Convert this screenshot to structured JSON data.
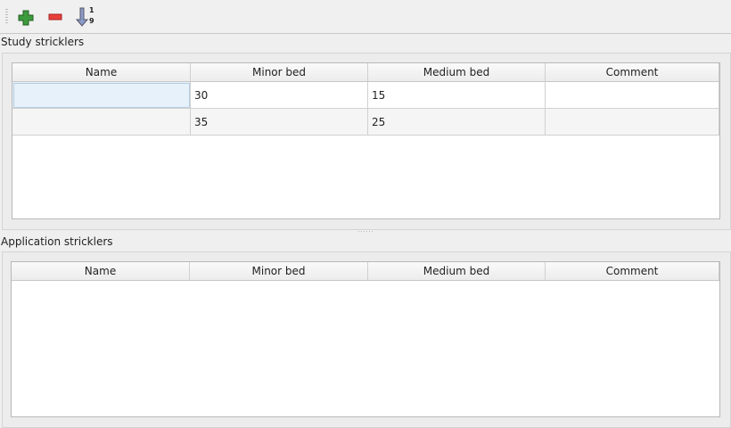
{
  "toolbar": {
    "add_icon": "plus-icon",
    "remove_icon": "minus-icon",
    "sort_icon": "sort-ascending-icon",
    "sort_digits": [
      "1",
      "9"
    ]
  },
  "study": {
    "title": "Study stricklers",
    "columns": [
      "Name",
      "Minor bed",
      "Medium bed",
      "Comment"
    ],
    "rows": [
      [
        "",
        "30",
        "15",
        ""
      ],
      [
        "",
        "35",
        "25",
        ""
      ]
    ]
  },
  "application": {
    "title": "Application stricklers",
    "columns": [
      "Name",
      "Minor bed",
      "Medium bed",
      "Comment"
    ],
    "rows": []
  }
}
